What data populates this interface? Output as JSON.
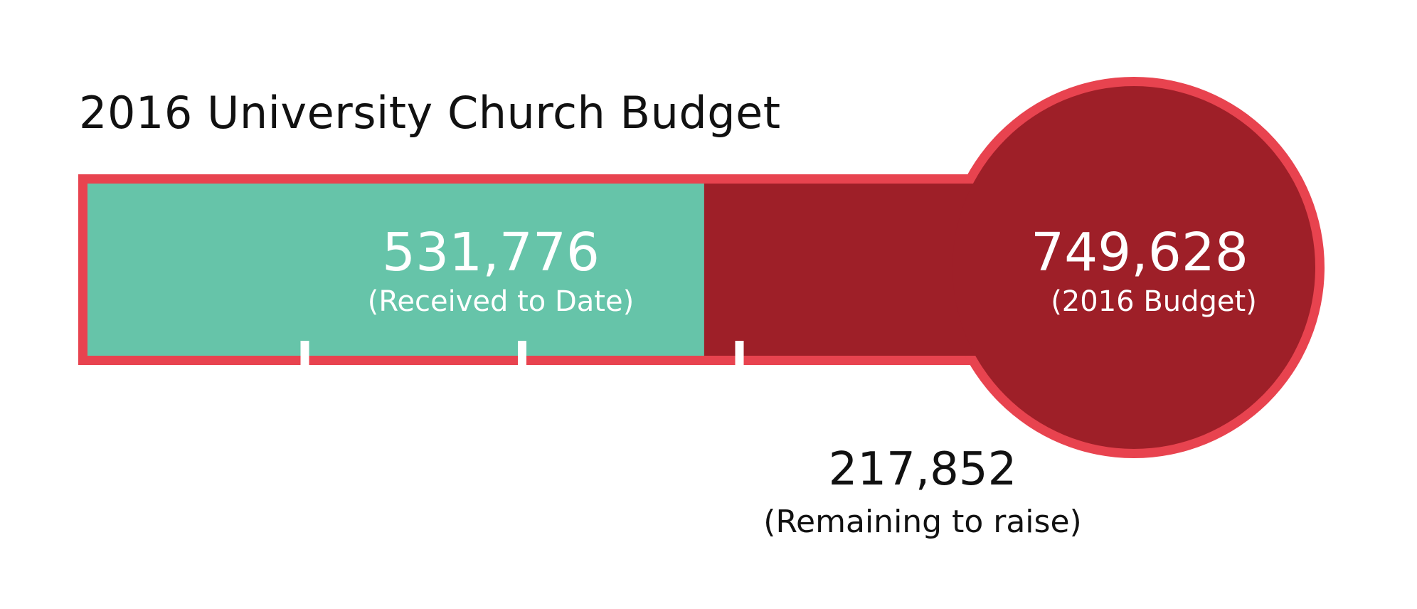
{
  "chart": {
    "title": "2016 University Church Budget"
  },
  "colors": {
    "outline": "#E8434F",
    "received": "#66C4A9",
    "budget": "#9E1F28",
    "tick": "#ffffff"
  },
  "chart_data": {
    "type": "bar",
    "title": "2016 University Church Budget",
    "xlabel": "",
    "ylabel": "",
    "orientation": "horizontal",
    "total": 749628,
    "series": [
      {
        "name": "Received to Date",
        "value": 531776
      },
      {
        "name": "Remaining to raise",
        "value": 217852
      }
    ],
    "labels": {
      "received_value": "531,776",
      "received_caption": "(Received to Date)",
      "budget_value": "749,628",
      "budget_caption": "(2016 Budget)",
      "remaining_value": "217,852",
      "remaining_caption": "(Remaining to raise)"
    },
    "ticks_fraction_of_total": [
      0.25,
      0.5,
      0.75
    ],
    "grid": false,
    "legend": "none"
  }
}
